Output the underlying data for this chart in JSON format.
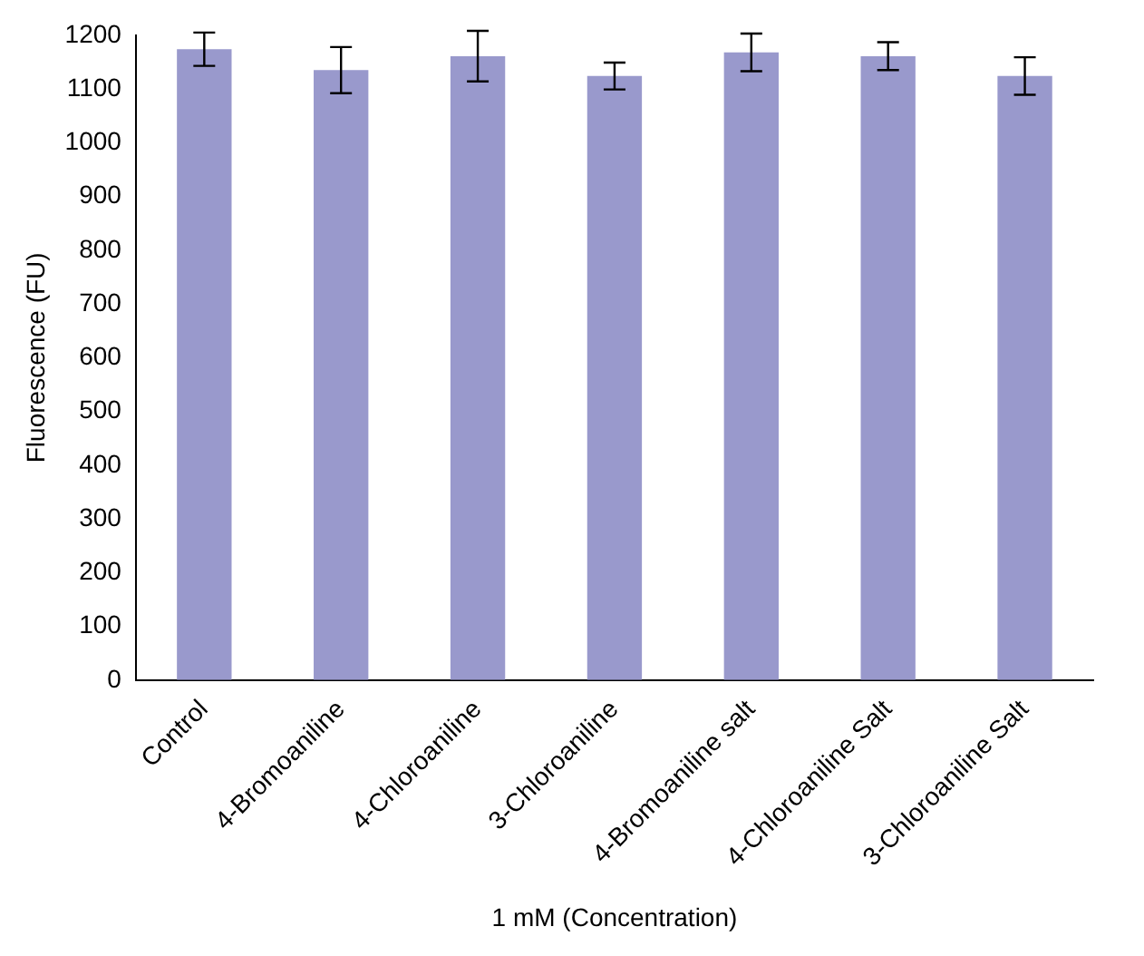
{
  "chart_data": {
    "type": "bar",
    "xlabel": "1 mM (Concentration)",
    "ylabel": "Fluorescence (FU)",
    "categories": [
      "Control",
      "4-Bromoaniline",
      "4-Chloroaniline",
      "3-Chloroaniline",
      "4-Bromoaniline salt",
      "4-Chloroaniline Salt",
      "3-Chloroaniline Salt"
    ],
    "values": [
      1174,
      1135,
      1161,
      1124,
      1168,
      1161,
      1124
    ],
    "errors": [
      31,
      43,
      47,
      25,
      35,
      26,
      35
    ],
    "color": "#9999cc",
    "ylim": [
      0,
      1200
    ],
    "yticks": [
      0,
      100,
      200,
      300,
      400,
      500,
      600,
      700,
      800,
      900,
      1000,
      1100,
      1200
    ],
    "grid": false,
    "legend": false
  }
}
